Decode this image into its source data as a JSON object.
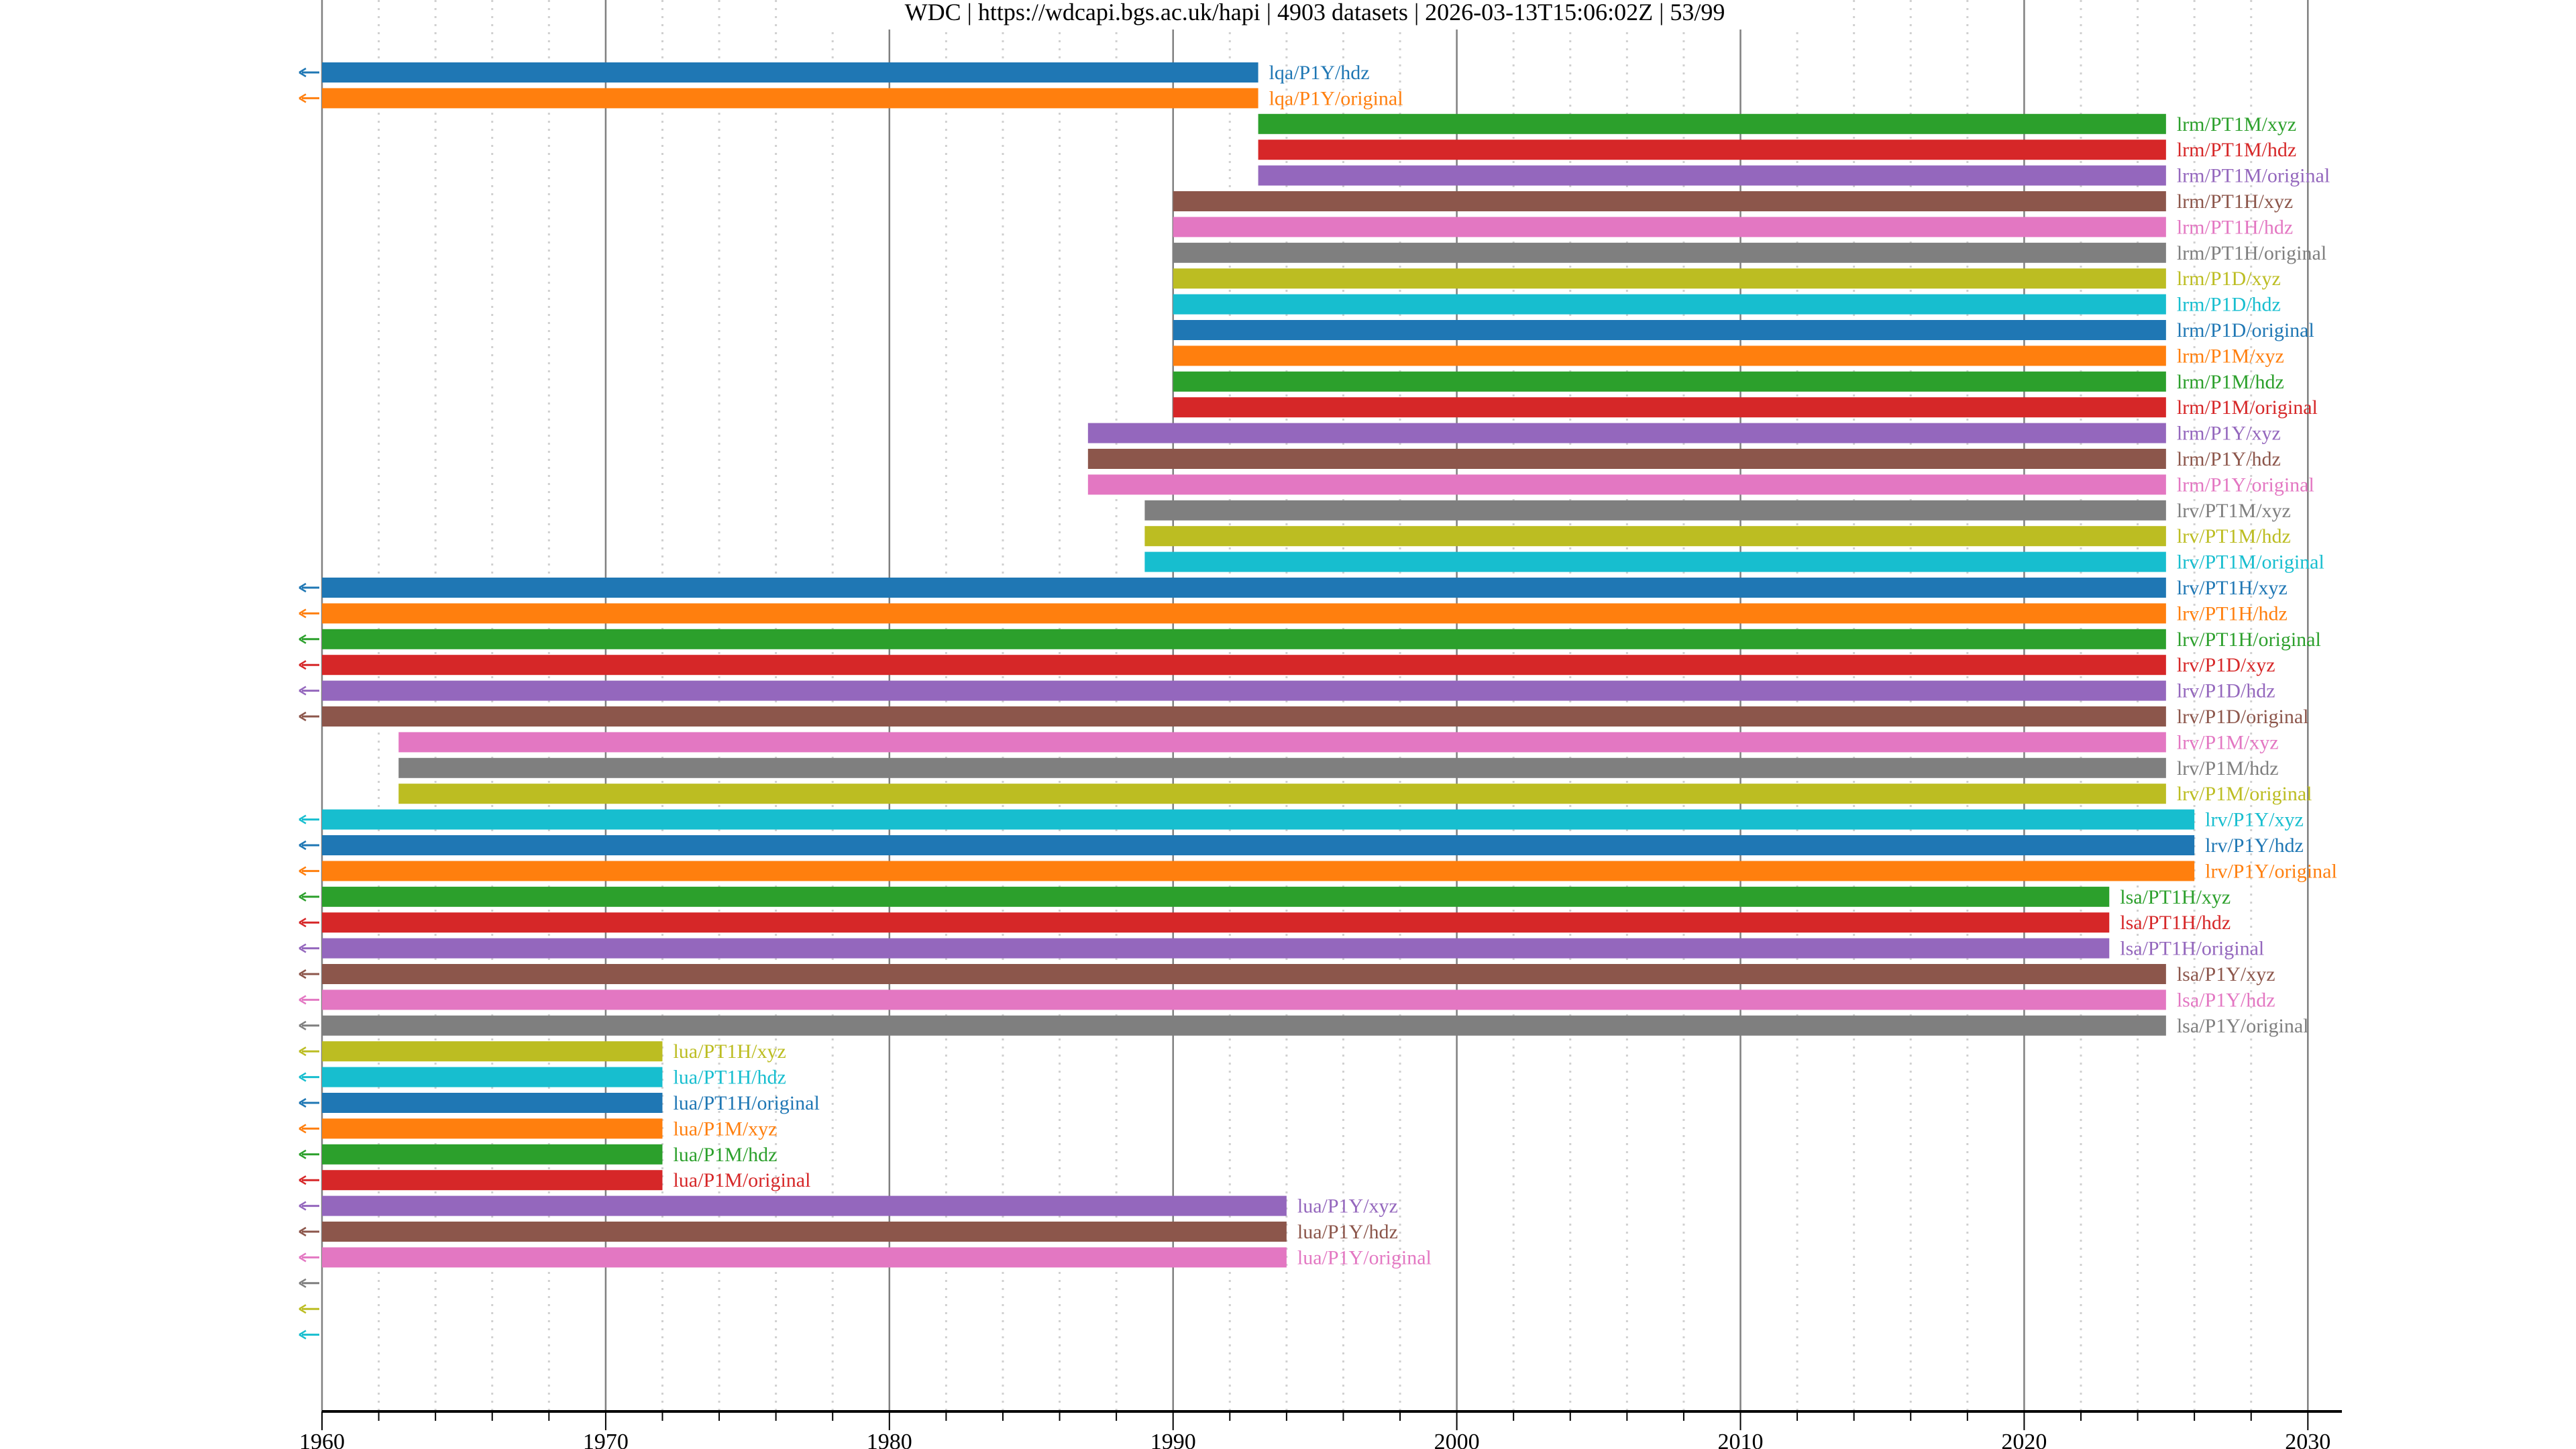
{
  "chart_data": {
    "type": "bar",
    "orientation": "horizontal-timeline",
    "title": "WDC | https://wdcapi.bgs.ac.uk/hapi | 4903 datasets | 2026-03-13T15:06:02Z | 53/99",
    "xlabel": "",
    "ylabel": "",
    "xlim": [
      1960,
      2031.2
    ],
    "x_ticks": [
      "1960",
      "1970",
      "1980",
      "1990",
      "2000",
      "2010",
      "2020",
      "2030"
    ],
    "x_tick_values": [
      1960,
      1970,
      1980,
      1990,
      2000,
      2010,
      2020,
      2030
    ],
    "minor_tick_step_years": 2,
    "grid": {
      "major": "solid",
      "minor": "dotted"
    },
    "legend": "none (labels at bar ends)",
    "left_arrow_meaning": "data begins before 1960",
    "palette": [
      "#1f77b4",
      "#ff7f0e",
      "#2ca02c",
      "#d62728",
      "#9467bd",
      "#8c564b",
      "#e377c2",
      "#7f7f7f",
      "#bcbd22",
      "#17becf"
    ],
    "rows": [
      {
        "label": "lqa/P1Y/hdz",
        "start": null,
        "end": 1993,
        "before_axis": true
      },
      {
        "label": "lqa/P1Y/original",
        "start": null,
        "end": 1993,
        "before_axis": true
      },
      {
        "label": "lrm/PT1M/xyz",
        "start": 1993,
        "end": 2025,
        "before_axis": false
      },
      {
        "label": "lrm/PT1M/hdz",
        "start": 1993,
        "end": 2025,
        "before_axis": false
      },
      {
        "label": "lrm/PT1M/original",
        "start": 1993,
        "end": 2025,
        "before_axis": false
      },
      {
        "label": "lrm/PT1H/xyz",
        "start": 1990,
        "end": 2025,
        "before_axis": false
      },
      {
        "label": "lrm/PT1H/hdz",
        "start": 1990,
        "end": 2025,
        "before_axis": false
      },
      {
        "label": "lrm/PT1H/original",
        "start": 1990,
        "end": 2025,
        "before_axis": false
      },
      {
        "label": "lrm/P1D/xyz",
        "start": 1990,
        "end": 2025,
        "before_axis": false
      },
      {
        "label": "lrm/P1D/hdz",
        "start": 1990,
        "end": 2025,
        "before_axis": false
      },
      {
        "label": "lrm/P1D/original",
        "start": 1990,
        "end": 2025,
        "before_axis": false
      },
      {
        "label": "lrm/P1M/xyz",
        "start": 1990,
        "end": 2025,
        "before_axis": false
      },
      {
        "label": "lrm/P1M/hdz",
        "start": 1990,
        "end": 2025,
        "before_axis": false
      },
      {
        "label": "lrm/P1M/original",
        "start": 1990,
        "end": 2025,
        "before_axis": false
      },
      {
        "label": "lrm/P1Y/xyz",
        "start": 1987,
        "end": 2025,
        "before_axis": false
      },
      {
        "label": "lrm/P1Y/hdz",
        "start": 1987,
        "end": 2025,
        "before_axis": false
      },
      {
        "label": "lrm/P1Y/original",
        "start": 1987,
        "end": 2025,
        "before_axis": false
      },
      {
        "label": "lrv/PT1M/xyz",
        "start": 1989,
        "end": 2025,
        "before_axis": false
      },
      {
        "label": "lrv/PT1M/hdz",
        "start": 1989,
        "end": 2025,
        "before_axis": false
      },
      {
        "label": "lrv/PT1M/original",
        "start": 1989,
        "end": 2025,
        "before_axis": false
      },
      {
        "label": "lrv/PT1H/xyz",
        "start": null,
        "end": 2025,
        "before_axis": true
      },
      {
        "label": "lrv/PT1H/hdz",
        "start": null,
        "end": 2025,
        "before_axis": true
      },
      {
        "label": "lrv/PT1H/original",
        "start": null,
        "end": 2025,
        "before_axis": true
      },
      {
        "label": "lrv/P1D/xyz",
        "start": null,
        "end": 2025,
        "before_axis": true
      },
      {
        "label": "lrv/P1D/hdz",
        "start": null,
        "end": 2025,
        "before_axis": true
      },
      {
        "label": "lrv/P1D/original",
        "start": null,
        "end": 2025,
        "before_axis": true
      },
      {
        "label": "lrv/P1M/xyz",
        "start": 1962.7,
        "end": 2025,
        "before_axis": false
      },
      {
        "label": "lrv/P1M/hdz",
        "start": 1962.7,
        "end": 2025,
        "before_axis": false
      },
      {
        "label": "lrv/P1M/original",
        "start": 1962.7,
        "end": 2025,
        "before_axis": false
      },
      {
        "label": "lrv/P1Y/xyz",
        "start": null,
        "end": 2026,
        "before_axis": true
      },
      {
        "label": "lrv/P1Y/hdz",
        "start": null,
        "end": 2026,
        "before_axis": true
      },
      {
        "label": "lrv/P1Y/original",
        "start": null,
        "end": 2026,
        "before_axis": true
      },
      {
        "label": "lsa/PT1H/xyz",
        "start": null,
        "end": 2023,
        "before_axis": true
      },
      {
        "label": "lsa/PT1H/hdz",
        "start": null,
        "end": 2023,
        "before_axis": true
      },
      {
        "label": "lsa/PT1H/original",
        "start": null,
        "end": 2023,
        "before_axis": true
      },
      {
        "label": "lsa/P1Y/xyz",
        "start": null,
        "end": 2025,
        "before_axis": true
      },
      {
        "label": "lsa/P1Y/hdz",
        "start": null,
        "end": 2025,
        "before_axis": true
      },
      {
        "label": "lsa/P1Y/original",
        "start": null,
        "end": 2025,
        "before_axis": true
      },
      {
        "label": "lua/PT1H/xyz",
        "start": null,
        "end": 1972,
        "before_axis": true
      },
      {
        "label": "lua/PT1H/hdz",
        "start": null,
        "end": 1972,
        "before_axis": true
      },
      {
        "label": "lua/PT1H/original",
        "start": null,
        "end": 1972,
        "before_axis": true
      },
      {
        "label": "lua/P1M/xyz",
        "start": null,
        "end": 1972,
        "before_axis": true
      },
      {
        "label": "lua/P1M/hdz",
        "start": null,
        "end": 1972,
        "before_axis": true
      },
      {
        "label": "lua/P1M/original",
        "start": null,
        "end": 1972,
        "before_axis": true
      },
      {
        "label": "lua/P1Y/xyz",
        "start": null,
        "end": 1994,
        "before_axis": true
      },
      {
        "label": "lua/P1Y/hdz",
        "start": null,
        "end": 1994,
        "before_axis": true
      },
      {
        "label": "lua/P1Y/original",
        "start": null,
        "end": 1994,
        "before_axis": true
      },
      {
        "label": "",
        "start": null,
        "end": null,
        "before_axis": true
      },
      {
        "label": "",
        "start": null,
        "end": null,
        "before_axis": true
      },
      {
        "label": "",
        "start": null,
        "end": null,
        "before_axis": true
      }
    ]
  }
}
